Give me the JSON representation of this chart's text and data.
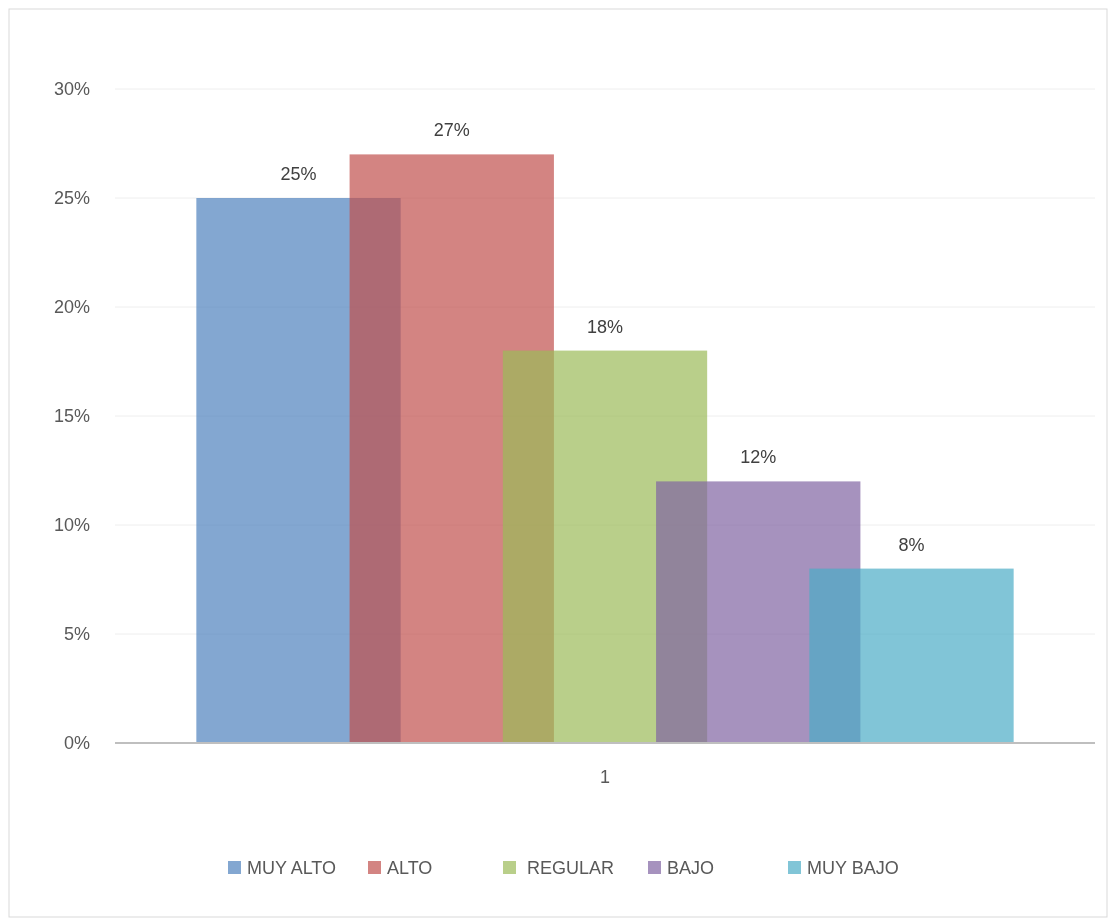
{
  "chart_data": {
    "type": "bar",
    "categories": [
      "1"
    ],
    "series": [
      {
        "name": "MUY ALTO",
        "color": "#4f81bd",
        "values": [
          25
        ],
        "value_labels": [
          "25%"
        ]
      },
      {
        "name": "ALTO",
        "color": "#c0504d",
        "values": [
          27
        ],
        "value_labels": [
          "27%"
        ]
      },
      {
        "name": "REGULAR",
        "color": "#9bbb59",
        "values": [
          18
        ],
        "value_labels": [
          "18%"
        ]
      },
      {
        "name": "BAJO",
        "color": "#8064a2",
        "values": [
          12
        ],
        "value_labels": [
          "12%"
        ]
      },
      {
        "name": "MUY BAJO",
        "color": "#4bacc6",
        "values": [
          8
        ],
        "value_labels": [
          "8%"
        ]
      }
    ],
    "ylim": [
      0,
      30
    ],
    "yticks": [
      {
        "value": 0,
        "label": "0%"
      },
      {
        "value": 5,
        "label": "5%"
      },
      {
        "value": 10,
        "label": "10%"
      },
      {
        "value": 15,
        "label": "15%"
      },
      {
        "value": 20,
        "label": "20%"
      },
      {
        "value": 25,
        "label": "25%"
      },
      {
        "value": 30,
        "label": "30%"
      }
    ],
    "grid": "y",
    "legend": "bottom"
  }
}
